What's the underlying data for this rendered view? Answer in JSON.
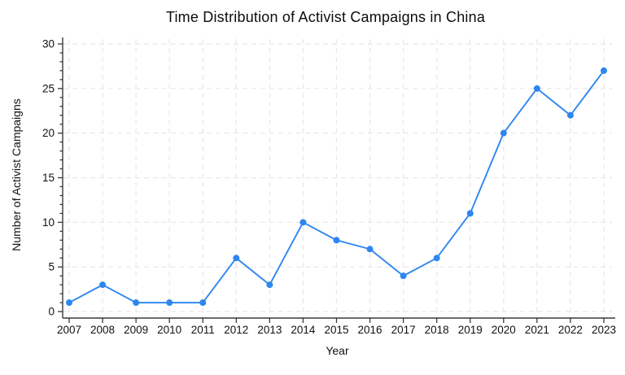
{
  "chart_data": {
    "type": "line",
    "title": "Time Distribution of Activist Campaigns in China",
    "xlabel": "Year",
    "ylabel": "Number of Activist Campaigns",
    "x": [
      2007,
      2008,
      2009,
      2010,
      2011,
      2012,
      2013,
      2014,
      2015,
      2016,
      2017,
      2018,
      2019,
      2020,
      2021,
      2022,
      2023
    ],
    "series": [
      {
        "name": "Activist Campaigns",
        "values": [
          1,
          3,
          1,
          1,
          1,
          6,
          3,
          10,
          8,
          7,
          4,
          6,
          11,
          20,
          25,
          22,
          27
        ]
      }
    ],
    "ylim": [
      0,
      30
    ],
    "yticks": [
      0,
      5,
      10,
      15,
      20,
      25,
      30
    ],
    "y_minor_tick_step": 1,
    "grid": true,
    "grid_style": "dashed",
    "legend_position": "none",
    "colors": {
      "line": "#2E86F0",
      "marker": "#2E86F0",
      "grid": "#e7e7e7",
      "axis": "#3a3a3a",
      "text": "#111111"
    }
  }
}
